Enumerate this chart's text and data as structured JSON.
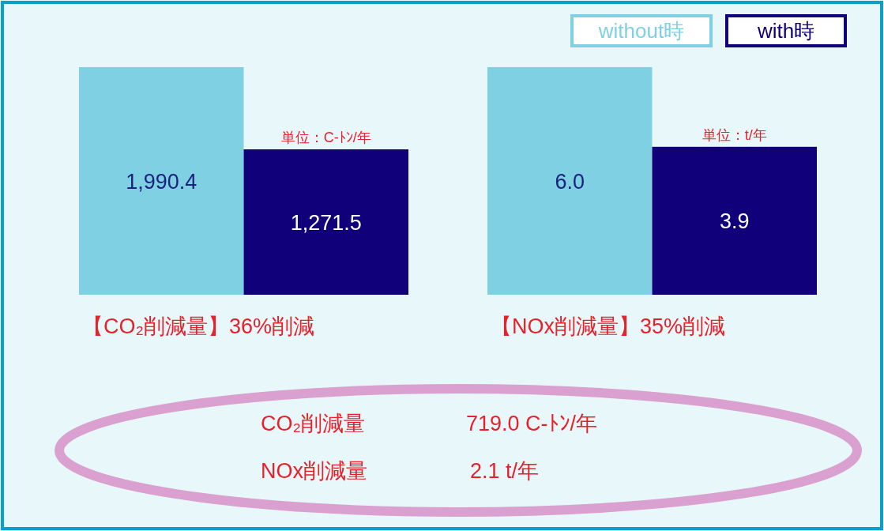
{
  "chart_data": [
    {
      "type": "bar",
      "categories": [
        null
      ],
      "xlabel": "【CO₂削減量】36%削減",
      "annotations": [
        "単位：C-ﾄﾝ/年"
      ],
      "series": [
        {
          "color": "#80d0e4",
          "values": [
            1990.4
          ],
          "value_labels": [
            "1,990.4"
          ]
        },
        {
          "color": "#10007a",
          "values": [
            1271.5
          ],
          "value_labels": [
            "1,271.5"
          ]
        }
      ]
    },
    {
      "type": "bar",
      "categories": [
        null
      ],
      "xlabel": "【NOx削減量】35%削減",
      "annotations": [
        "単位：t/年"
      ],
      "legend": "top right",
      "series": [
        {
          "name": "without時",
          "color": "#80d0e4",
          "values": [
            6.0
          ],
          "value_labels": [
            "6.0"
          ]
        },
        {
          "name": "with時",
          "color": "#10007a",
          "values": [
            3.9
          ],
          "value_labels": [
            "3.9"
          ]
        }
      ]
    },
    {
      "type": "other",
      "annotations": [
        "CO₂削減量",
        "719.0 C-ﾄﾝ/年",
        "NOx削減量",
        "2.1 t/年"
      ]
    }
  ]
}
